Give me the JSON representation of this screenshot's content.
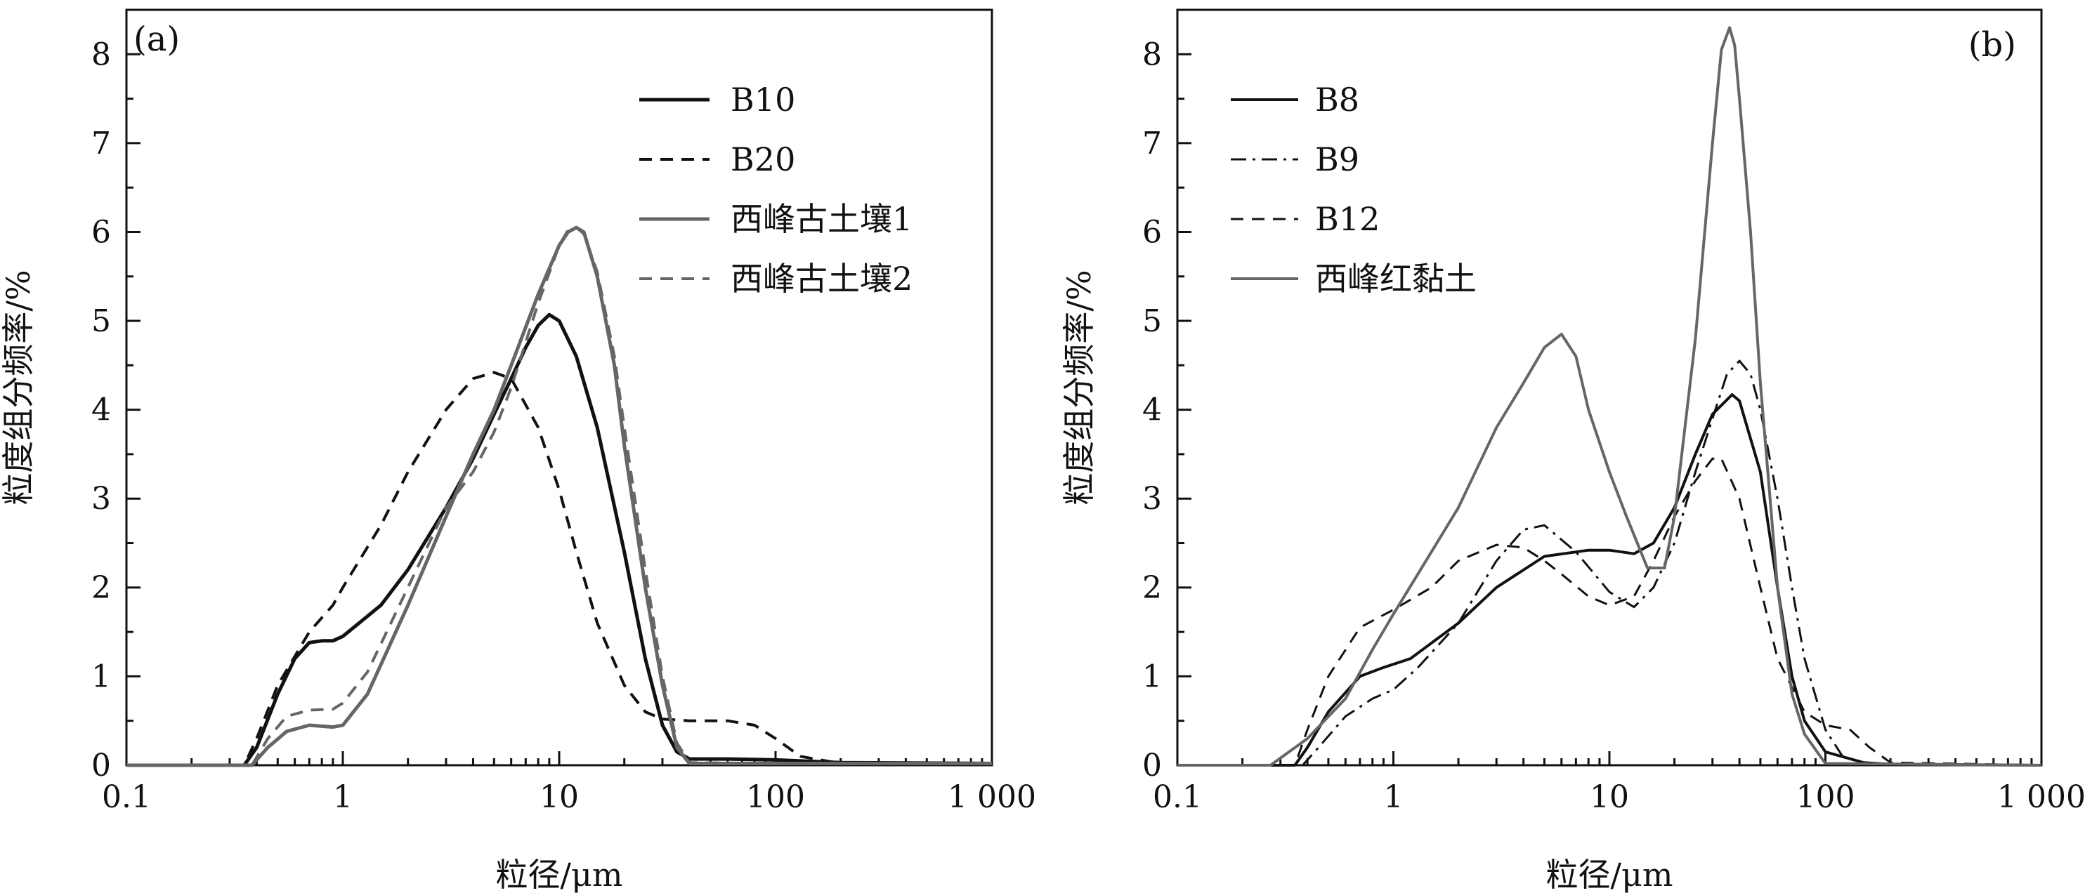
{
  "chart_data": [
    {
      "type": "line",
      "panel_label": "(a)",
      "xlabel": "粒径/μm",
      "ylabel": "粒度组分频率/%",
      "x_scale": "log",
      "xlim": [
        0.1,
        1000
      ],
      "ylim": [
        0,
        8.5
      ],
      "x_ticks": [
        0.1,
        1,
        10,
        100,
        1000
      ],
      "x_tick_labels": [
        "0.1",
        "1",
        "10",
        "100",
        "1 000"
      ],
      "y_ticks": [
        0,
        1,
        2,
        3,
        4,
        5,
        6,
        7,
        8
      ],
      "y_tick_labels": [
        "0",
        "1",
        "2",
        "3",
        "4",
        "5",
        "6",
        "7",
        "8"
      ],
      "grid": false,
      "legend_position": "top-right",
      "series": [
        {
          "name": "B10",
          "color": "#111111",
          "dash": "solid",
          "width": 5,
          "x": [
            0.1,
            0.35,
            0.4,
            0.5,
            0.6,
            0.7,
            0.8,
            0.9,
            1,
            1.5,
            2,
            3,
            4,
            5,
            6,
            7,
            8,
            9,
            10,
            12,
            15,
            20,
            25,
            30,
            35,
            40,
            60,
            100,
            200,
            1000
          ],
          "y": [
            0,
            0,
            0.2,
            0.8,
            1.2,
            1.38,
            1.4,
            1.4,
            1.45,
            1.8,
            2.2,
            2.9,
            3.45,
            3.95,
            4.35,
            4.7,
            4.95,
            5.07,
            5.0,
            4.6,
            3.8,
            2.4,
            1.2,
            0.45,
            0.15,
            0.07,
            0.07,
            0.06,
            0.03,
            0.02
          ]
        },
        {
          "name": "B20",
          "color": "#111111",
          "dash": "dashed",
          "width": 4,
          "x": [
            0.1,
            0.35,
            0.4,
            0.5,
            0.7,
            0.9,
            1,
            1.5,
            2,
            3,
            4,
            5,
            6,
            8,
            10,
            12,
            15,
            20,
            25,
            30,
            40,
            60,
            80,
            100,
            130,
            200,
            1000
          ],
          "y": [
            0,
            0,
            0.3,
            0.9,
            1.5,
            1.8,
            2.0,
            2.7,
            3.3,
            4.0,
            4.35,
            4.42,
            4.35,
            3.8,
            3.1,
            2.4,
            1.6,
            0.9,
            0.6,
            0.52,
            0.5,
            0.5,
            0.45,
            0.3,
            0.1,
            0.02,
            0.02
          ]
        },
        {
          "name": "西峰古土壤1",
          "color": "#666666",
          "dash": "solid",
          "width": 5,
          "x": [
            0.1,
            0.38,
            0.45,
            0.55,
            0.7,
            0.9,
            1,
            1.3,
            2,
            3,
            4,
            5,
            6,
            8,
            10,
            11,
            12,
            13,
            15,
            18,
            20,
            25,
            30,
            35,
            40,
            100,
            1000
          ],
          "y": [
            0,
            0,
            0.2,
            0.38,
            0.45,
            0.43,
            0.45,
            0.8,
            1.8,
            2.8,
            3.5,
            4.0,
            4.5,
            5.3,
            5.85,
            6.0,
            6.05,
            6.0,
            5.5,
            4.5,
            3.6,
            2.0,
            0.9,
            0.2,
            0.02,
            0.02,
            0.02
          ]
        },
        {
          "name": "西峰古土壤2",
          "color": "#666666",
          "dash": "dashed",
          "width": 4,
          "x": [
            0.1,
            0.38,
            0.45,
            0.55,
            0.7,
            0.9,
            1,
            1.3,
            2,
            3,
            4,
            5,
            6,
            8,
            10,
            11,
            12,
            13,
            15,
            18,
            20,
            25,
            30,
            35,
            40,
            100,
            1000
          ],
          "y": [
            0,
            0,
            0.3,
            0.55,
            0.62,
            0.63,
            0.7,
            1.05,
            2.0,
            2.9,
            3.3,
            3.75,
            4.25,
            5.2,
            5.85,
            6.02,
            6.05,
            5.98,
            5.55,
            4.6,
            3.8,
            2.2,
            1.0,
            0.25,
            0.03,
            0.02,
            0.02
          ]
        }
      ]
    },
    {
      "type": "line",
      "panel_label": "(b)",
      "xlabel": "粒径/μm",
      "ylabel": "粒度组分频率/%",
      "x_scale": "log",
      "xlim": [
        0.1,
        1000
      ],
      "ylim": [
        0,
        8.5
      ],
      "x_ticks": [
        0.1,
        1,
        10,
        100,
        1000
      ],
      "x_tick_labels": [
        "0.1",
        "1",
        "10",
        "100",
        "1 000"
      ],
      "y_ticks": [
        0,
        1,
        2,
        3,
        4,
        5,
        6,
        7,
        8
      ],
      "y_tick_labels": [
        "0",
        "1",
        "2",
        "3",
        "4",
        "5",
        "6",
        "7",
        "8"
      ],
      "grid": false,
      "legend_position": "top-left",
      "series": [
        {
          "name": "B8",
          "color": "#111111",
          "dash": "solid",
          "width": 4,
          "x": [
            0.1,
            0.35,
            0.4,
            0.5,
            0.7,
            0.9,
            1.2,
            2,
            3,
            5,
            8,
            10,
            13,
            16,
            20,
            25,
            30,
            37,
            40,
            50,
            60,
            70,
            80,
            100,
            150,
            200,
            1000
          ],
          "y": [
            0,
            0,
            0.2,
            0.6,
            1.0,
            1.1,
            1.2,
            1.6,
            2.0,
            2.35,
            2.42,
            2.42,
            2.38,
            2.5,
            2.9,
            3.5,
            3.95,
            4.17,
            4.1,
            3.3,
            2.0,
            1.0,
            0.5,
            0.15,
            0.03,
            0.01,
            0
          ]
        },
        {
          "name": "B9",
          "color": "#111111",
          "dash": "dashdot",
          "width": 3,
          "x": [
            0.1,
            0.38,
            0.45,
            0.6,
            0.8,
            1,
            1.3,
            2,
            3,
            4,
            5,
            7,
            10,
            13,
            16,
            20,
            25,
            30,
            35,
            40,
            45,
            50,
            60,
            70,
            80,
            100,
            120,
            150,
            1000
          ],
          "y": [
            0,
            0,
            0.2,
            0.55,
            0.75,
            0.85,
            1.1,
            1.6,
            2.3,
            2.65,
            2.7,
            2.4,
            1.95,
            1.78,
            2.0,
            2.5,
            3.3,
            3.9,
            4.4,
            4.55,
            4.4,
            4.0,
            3.0,
            2.0,
            1.2,
            0.4,
            0.1,
            0.02,
            0
          ]
        },
        {
          "name": "B12",
          "color": "#111111",
          "dash": "dashed",
          "width": 3,
          "x": [
            0.1,
            0.35,
            0.4,
            0.5,
            0.7,
            1,
            1.5,
            2,
            3,
            4,
            5,
            6,
            8,
            10,
            13,
            16,
            20,
            25,
            30,
            33,
            40,
            50,
            60,
            80,
            100,
            130,
            160,
            200,
            1000
          ],
          "y": [
            0,
            0,
            0.4,
            1.0,
            1.55,
            1.75,
            2.0,
            2.3,
            2.48,
            2.45,
            2.3,
            2.15,
            1.9,
            1.8,
            1.9,
            2.3,
            2.8,
            3.2,
            3.45,
            3.45,
            3.0,
            2.0,
            1.2,
            0.6,
            0.45,
            0.4,
            0.2,
            0.03,
            0
          ]
        },
        {
          "name": "西峰红黏土",
          "color": "#666666",
          "dash": "solid",
          "width": 4,
          "x": [
            0.1,
            0.27,
            0.4,
            0.6,
            0.8,
            1,
            1.5,
            2,
            3,
            4,
            5,
            6,
            7,
            8,
            10,
            12,
            15,
            18,
            20,
            25,
            30,
            33,
            36,
            38,
            40,
            45,
            50,
            60,
            70,
            80,
            100,
            1000
          ],
          "y": [
            0,
            0,
            0.3,
            0.75,
            1.3,
            1.7,
            2.4,
            2.9,
            3.8,
            4.3,
            4.7,
            4.85,
            4.6,
            4.0,
            3.3,
            2.8,
            2.22,
            2.22,
            2.8,
            4.8,
            7.0,
            8.05,
            8.3,
            8.1,
            7.5,
            6.0,
            4.3,
            2.0,
            0.8,
            0.35,
            0.02,
            0
          ]
        }
      ]
    }
  ]
}
